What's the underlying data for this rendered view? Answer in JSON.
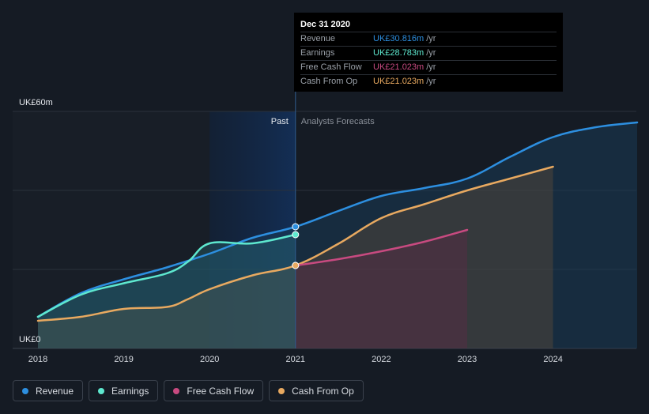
{
  "chart_data": {
    "type": "area",
    "y_axis": {
      "min": 0,
      "max": 60,
      "top_label": "UK£60m",
      "bottom_label": "UK£0"
    },
    "x_ticks": [
      "2018",
      "2019",
      "2020",
      "2021",
      "2022",
      "2023",
      "2024"
    ],
    "past_label": "Past",
    "forecast_label": "Analysts Forecasts",
    "divider_date": 2021.0,
    "series": [
      {
        "name": "Revenue",
        "color": "#2d8fe0",
        "points": [
          [
            2018.0,
            8.0
          ],
          [
            2018.5,
            14.0
          ],
          [
            2019.0,
            17.5
          ],
          [
            2019.5,
            20.5
          ],
          [
            2020.0,
            24.0
          ],
          [
            2020.5,
            28.0
          ],
          [
            2021.0,
            30.8
          ],
          [
            2021.5,
            34.8
          ],
          [
            2022.0,
            38.6
          ],
          [
            2022.5,
            40.6
          ],
          [
            2023.0,
            43.0
          ],
          [
            2023.5,
            48.5
          ],
          [
            2024.0,
            53.5
          ],
          [
            2024.5,
            56.0
          ],
          [
            2024.98,
            57.2
          ]
        ]
      },
      {
        "name": "Earnings",
        "color": "#5ee8cf",
        "points": [
          [
            2018.0,
            8.0
          ],
          [
            2018.5,
            13.6
          ],
          [
            2019.0,
            16.5
          ],
          [
            2019.5,
            19.0
          ],
          [
            2019.75,
            22.0
          ],
          [
            2020.0,
            26.6
          ],
          [
            2020.5,
            26.6
          ],
          [
            2021.0,
            28.8
          ]
        ]
      },
      {
        "name": "Free Cash Flow",
        "color": "#c84a80",
        "points": [
          [
            2021.0,
            21.0
          ],
          [
            2021.5,
            22.6
          ],
          [
            2022.0,
            24.6
          ],
          [
            2022.5,
            27.0
          ],
          [
            2023.0,
            30.0
          ]
        ]
      },
      {
        "name": "Cash From Op",
        "color": "#e8a960",
        "points": [
          [
            2018.0,
            7.0
          ],
          [
            2018.5,
            8.0
          ],
          [
            2019.0,
            10.0
          ],
          [
            2019.5,
            10.5
          ],
          [
            2019.75,
            12.5
          ],
          [
            2020.0,
            15.0
          ],
          [
            2020.5,
            18.5
          ],
          [
            2021.0,
            21.0
          ],
          [
            2021.5,
            26.5
          ],
          [
            2022.0,
            33.0
          ],
          [
            2022.5,
            36.5
          ],
          [
            2023.0,
            40.0
          ],
          [
            2023.5,
            43.0
          ],
          [
            2024.0,
            46.0
          ]
        ]
      }
    ]
  },
  "tooltip": {
    "date": "Dec 31 2020",
    "unit": "/yr",
    "rows": [
      {
        "name": "Revenue",
        "value": "UK£30.816m",
        "color": "#2d8fe0"
      },
      {
        "name": "Earnings",
        "value": "UK£28.783m",
        "color": "#5ee8cf"
      },
      {
        "name": "Free Cash Flow",
        "value": "UK£21.023m",
        "color": "#c84a80"
      },
      {
        "name": "Cash From Op",
        "value": "UK£21.023m",
        "color": "#e8a960"
      }
    ]
  },
  "legend": [
    {
      "label": "Revenue",
      "color": "#2d8fe0"
    },
    {
      "label": "Earnings",
      "color": "#5ee8cf"
    },
    {
      "label": "Free Cash Flow",
      "color": "#c84a80"
    },
    {
      "label": "Cash From Op",
      "color": "#e8a960"
    }
  ]
}
